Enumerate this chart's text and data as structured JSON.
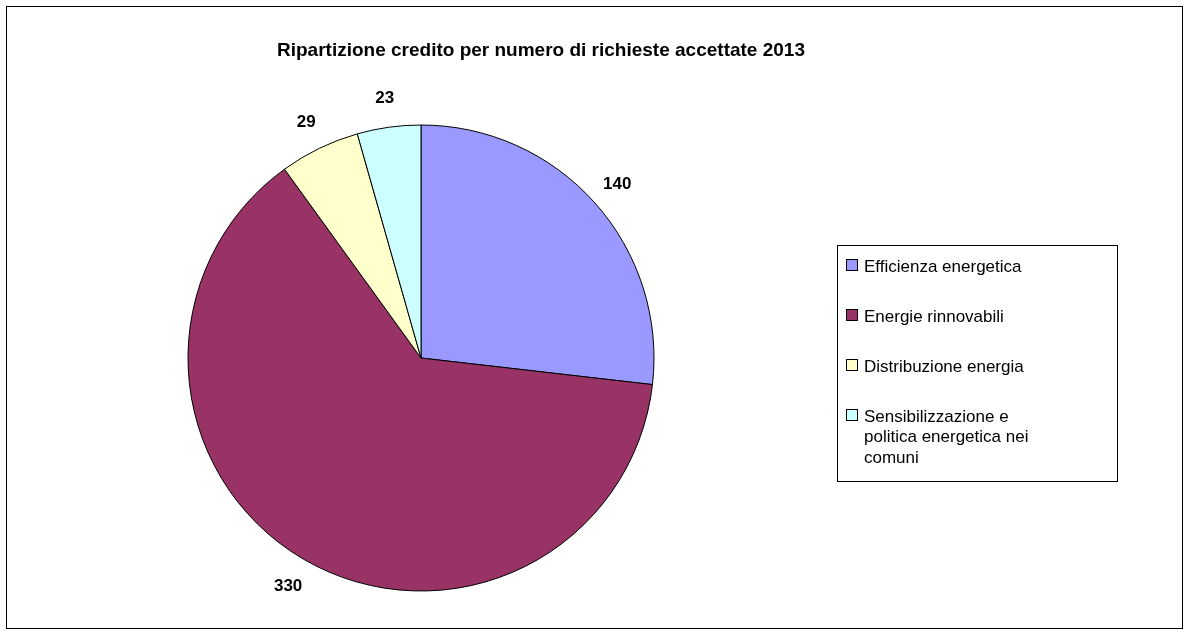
{
  "chart_data": {
    "type": "pie",
    "title": "Ripartizione credito per numero di richieste accettate 2013",
    "categories": [
      "Efficienza energetica",
      "Energie rinnovabili",
      "Distribuzione energia",
      "Sensibilizzazione e politica energetica nei comuni"
    ],
    "values": [
      140,
      330,
      29,
      23
    ],
    "colors": [
      "#9999ff",
      "#993366",
      "#ffffcc",
      "#ccffff"
    ],
    "data_labels": true,
    "legend": "right"
  }
}
